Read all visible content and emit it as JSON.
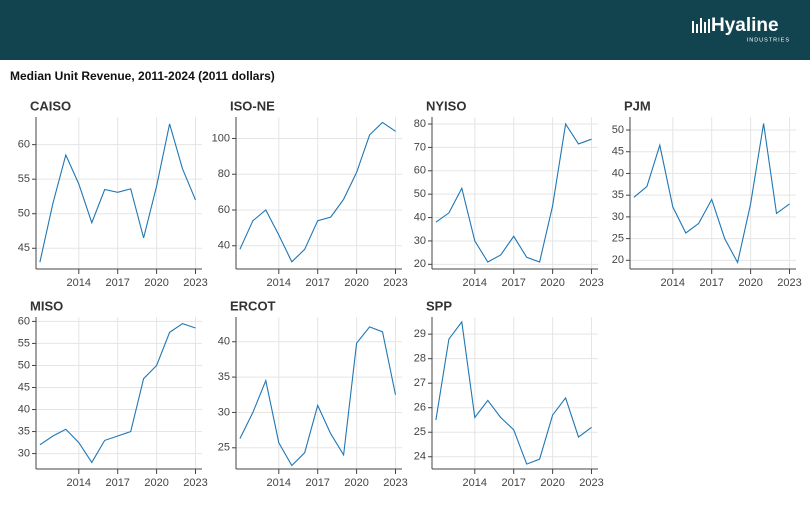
{
  "header": {
    "logo": "Hyaline",
    "logo_sub": "INDUSTRIES"
  },
  "title": "Median Unit Revenue, 2011-2024 (2011 dollars)",
  "chart_data": [
    {
      "type": "line",
      "title": "CAISO",
      "x": [
        2011,
        2012,
        2013,
        2014,
        2015,
        2016,
        2017,
        2018,
        2019,
        2020,
        2021,
        2022,
        2023
      ],
      "values": [
        43,
        51.5,
        58.5,
        54.3,
        48.7,
        53.5,
        53.1,
        53.6,
        46.5,
        54,
        63,
        56.5,
        52
      ],
      "color": "#1f77b4",
      "xlim": [
        2010.7,
        2023.5
      ],
      "xticks": [
        2014,
        2017,
        2020,
        2023
      ],
      "ylim": [
        42,
        64
      ],
      "yticks": [
        45,
        50,
        55,
        60
      ],
      "grid": true
    },
    {
      "type": "line",
      "title": "ISO-NE",
      "x": [
        2011,
        2012,
        2013,
        2014,
        2015,
        2016,
        2017,
        2018,
        2019,
        2020,
        2021,
        2022,
        2023
      ],
      "values": [
        38,
        54,
        60,
        46,
        31,
        38,
        54,
        56,
        66,
        81,
        102,
        109,
        104
      ],
      "color": "#1f77b4",
      "xlim": [
        2010.7,
        2023.5
      ],
      "xticks": [
        2014,
        2017,
        2020,
        2023
      ],
      "ylim": [
        27,
        112
      ],
      "yticks": [
        40,
        60,
        80,
        100
      ],
      "grid": true
    },
    {
      "type": "line",
      "title": "NYISO",
      "x": [
        2011,
        2012,
        2013,
        2014,
        2015,
        2016,
        2017,
        2018,
        2019,
        2020,
        2021,
        2022,
        2023
      ],
      "values": [
        38,
        42,
        52.5,
        30,
        21,
        24,
        32,
        23,
        21,
        45,
        80,
        71.5,
        73.5
      ],
      "color": "#1f77b4",
      "xlim": [
        2010.7,
        2023.5
      ],
      "xticks": [
        2014,
        2017,
        2020,
        2023
      ],
      "ylim": [
        18,
        83
      ],
      "yticks": [
        20,
        30,
        40,
        50,
        60,
        70,
        80
      ],
      "grid": true
    },
    {
      "type": "line",
      "title": "PJM",
      "x": [
        2011,
        2012,
        2013,
        2014,
        2015,
        2016,
        2017,
        2018,
        2019,
        2020,
        2021,
        2022,
        2023
      ],
      "values": [
        34.5,
        37,
        46.5,
        32.3,
        26.3,
        28.5,
        34,
        25,
        19.5,
        33,
        51.5,
        30.8,
        33
      ],
      "color": "#1f77b4",
      "xlim": [
        2010.7,
        2023.5
      ],
      "xticks": [
        2014,
        2017,
        2020,
        2023
      ],
      "ylim": [
        18,
        53
      ],
      "yticks": [
        20,
        25,
        30,
        35,
        40,
        45,
        50
      ],
      "grid": true
    },
    {
      "type": "line",
      "title": "MISO",
      "x": [
        2011,
        2012,
        2013,
        2014,
        2015,
        2016,
        2017,
        2018,
        2019,
        2020,
        2021,
        2022,
        2023
      ],
      "values": [
        32,
        34,
        35.5,
        32.5,
        28,
        33,
        34,
        35,
        47,
        50,
        57.5,
        59.5,
        58.5
      ],
      "color": "#1f77b4",
      "xlim": [
        2010.7,
        2023.5
      ],
      "xticks": [
        2014,
        2017,
        2020,
        2023
      ],
      "ylim": [
        26.5,
        61
      ],
      "yticks": [
        30,
        35,
        40,
        45,
        50,
        55,
        60
      ],
      "grid": true
    },
    {
      "type": "line",
      "title": "ERCOT",
      "x": [
        2011,
        2012,
        2013,
        2014,
        2015,
        2016,
        2017,
        2018,
        2019,
        2020,
        2021,
        2022,
        2023
      ],
      "values": [
        26.3,
        30,
        34.5,
        25.7,
        22.5,
        24.3,
        31,
        27,
        24,
        39.8,
        42.1,
        41.4,
        32.5
      ],
      "color": "#1f77b4",
      "xlim": [
        2010.7,
        2023.5
      ],
      "xticks": [
        2014,
        2017,
        2020,
        2023
      ],
      "ylim": [
        22,
        43.5
      ],
      "yticks": [
        25,
        30,
        35,
        40
      ],
      "grid": true
    },
    {
      "type": "line",
      "title": "SPP",
      "x": [
        2011,
        2012,
        2013,
        2014,
        2015,
        2016,
        2017,
        2018,
        2019,
        2020,
        2021,
        2022,
        2023
      ],
      "values": [
        25.5,
        28.8,
        29.5,
        25.6,
        26.3,
        25.6,
        25.1,
        23.7,
        23.9,
        25.7,
        26.4,
        24.8,
        25.2
      ],
      "color": "#1f77b4",
      "xlim": [
        2010.7,
        2023.5
      ],
      "xticks": [
        2014,
        2017,
        2020,
        2023
      ],
      "ylim": [
        23.5,
        29.7
      ],
      "yticks": [
        24,
        25,
        26,
        27,
        28,
        29
      ],
      "grid": true
    }
  ]
}
